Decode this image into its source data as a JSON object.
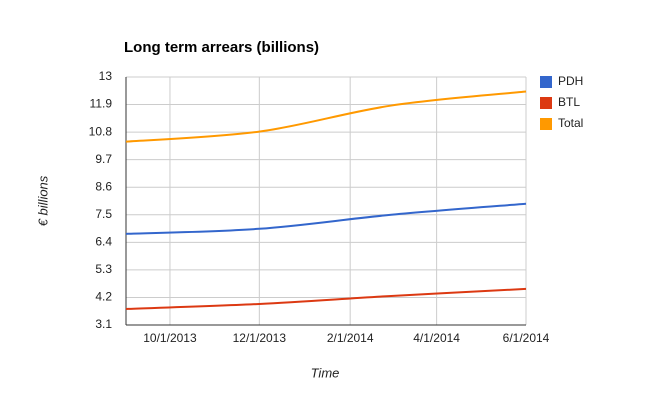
{
  "chart_data": {
    "type": "line",
    "title": "Long term arrears (billions)",
    "x_label": "Time",
    "y_label": "€ billions",
    "x": [
      "9/1/2013",
      "12/1/2013",
      "3/1/2014",
      "6/1/2014"
    ],
    "series": [
      {
        "name": "PDH",
        "color": "#3366cc",
        "values": [
          6.74,
          6.94,
          7.5,
          7.94
        ]
      },
      {
        "name": "BTL",
        "color": "#dc3912",
        "values": [
          3.74,
          3.94,
          4.26,
          4.54
        ]
      },
      {
        "name": "Total",
        "color": "#ff9900",
        "values": [
          10.42,
          10.82,
          11.86,
          12.42
        ]
      }
    ],
    "xlim": [
      "9/1/2013",
      "6/1/2014"
    ],
    "xticks": [
      "10/1/2013",
      "12/1/2013",
      "2/1/2014",
      "4/1/2014",
      "6/1/2014"
    ],
    "ylim": [
      3.1,
      13
    ],
    "yticks": [
      3.1,
      4.2,
      5.3,
      6.4,
      7.5,
      8.6,
      9.7,
      10.8,
      11.9,
      13
    ],
    "grid": true,
    "legend": "right"
  }
}
